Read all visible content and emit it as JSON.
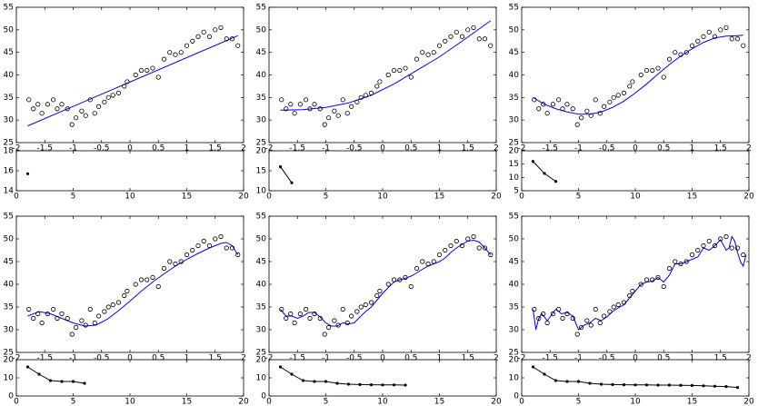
{
  "chart_data": [
    {
      "type": "scatter",
      "x": [
        -1.78,
        -1.7,
        -1.62,
        -1.55,
        -1.45,
        -1.35,
        -1.28,
        -1.2,
        -1.1,
        -1.02,
        -0.95,
        -0.85,
        -0.78,
        -0.7,
        -0.62,
        -0.55,
        -0.45,
        -0.38,
        -0.3,
        -0.2,
        -0.1,
        -0.05,
        0.1,
        0.2,
        0.3,
        0.4,
        0.5,
        0.6,
        0.7,
        0.8,
        0.9,
        1.0,
        1.1,
        1.2,
        1.3,
        1.4,
        1.5,
        1.6,
        1.7,
        1.8,
        1.9
      ],
      "y": [
        34.5,
        32.5,
        33.5,
        31.5,
        33.5,
        34.5,
        32.5,
        33.5,
        32.5,
        29,
        30.5,
        32,
        31,
        34.5,
        31.5,
        33,
        34,
        35,
        35.5,
        36,
        37.5,
        38.5,
        40,
        41,
        41,
        41.5,
        39.5,
        43.5,
        45,
        44.5,
        45,
        46.5,
        47.5,
        48.5,
        49.5,
        48.5,
        50,
        50.5,
        48,
        48,
        46.5
      ],
      "color": "#000000",
      "line_x": [
        -1.8,
        1.9
      ],
      "line_y": [
        28.7,
        48.7
      ],
      "line_color": "#0000ff",
      "xlim": [
        -2,
        2
      ],
      "ylim": [
        25,
        55
      ],
      "xticks": [
        -2,
        -1.5,
        -1,
        -0.5,
        0,
        0.5,
        1,
        1.5,
        2
      ],
      "yticks": [
        25,
        30,
        35,
        40,
        45,
        50,
        55
      ]
    },
    {
      "type": "line",
      "x": [
        1
      ],
      "values": [
        15.7
      ],
      "color": "#000000",
      "xlim": [
        0,
        20
      ],
      "ylim": [
        14,
        18
      ],
      "xticks": [
        0,
        5,
        10,
        15,
        20
      ],
      "yticks": [
        14,
        16,
        18
      ]
    },
    {
      "type": "scatter",
      "x": [
        -1.78,
        -1.7,
        -1.62,
        -1.55,
        -1.45,
        -1.35,
        -1.28,
        -1.2,
        -1.1,
        -1.02,
        -0.95,
        -0.85,
        -0.78,
        -0.7,
        -0.62,
        -0.55,
        -0.45,
        -0.38,
        -0.3,
        -0.2,
        -0.1,
        -0.05,
        0.1,
        0.2,
        0.3,
        0.4,
        0.5,
        0.6,
        0.7,
        0.8,
        0.9,
        1.0,
        1.1,
        1.2,
        1.3,
        1.4,
        1.5,
        1.6,
        1.7,
        1.8,
        1.9
      ],
      "y": [
        34.5,
        32.5,
        33.5,
        31.5,
        33.5,
        34.5,
        32.5,
        33.5,
        32.5,
        29,
        30.5,
        32,
        31,
        34.5,
        31.5,
        33,
        34,
        35,
        35.5,
        36,
        37.5,
        38.5,
        40,
        41,
        41,
        41.5,
        39.5,
        43.5,
        45,
        44.5,
        45,
        46.5,
        47.5,
        48.5,
        49.5,
        48.5,
        50,
        50.5,
        48,
        48,
        46.5
      ],
      "color": "#000000",
      "line_x": [
        -1.8,
        -1.4,
        -1,
        -0.6,
        -0.2,
        0.2,
        0.6,
        1,
        1.4,
        1.9
      ],
      "line_y": [
        32.2,
        32.3,
        32.8,
        33.8,
        35.5,
        38,
        41,
        44,
        47.5,
        52
      ],
      "line_color": "#0000ff",
      "xlim": [
        -2,
        2
      ],
      "ylim": [
        25,
        55
      ],
      "xticks": [
        -2,
        -1.5,
        -1,
        -0.5,
        0,
        0.5,
        1,
        1.5,
        2
      ],
      "yticks": [
        25,
        30,
        35,
        40,
        45,
        50,
        55
      ]
    },
    {
      "type": "line",
      "x": [
        1,
        2
      ],
      "values": [
        16,
        12
      ],
      "color": "#000000",
      "xlim": [
        0,
        20
      ],
      "ylim": [
        10,
        20
      ],
      "xticks": [
        0,
        5,
        10,
        15,
        20
      ],
      "yticks": [
        10,
        15,
        20
      ]
    },
    {
      "type": "scatter",
      "x": [
        -1.78,
        -1.7,
        -1.62,
        -1.55,
        -1.45,
        -1.35,
        -1.28,
        -1.2,
        -1.1,
        -1.02,
        -0.95,
        -0.85,
        -0.78,
        -0.7,
        -0.62,
        -0.55,
        -0.45,
        -0.38,
        -0.3,
        -0.2,
        -0.1,
        -0.05,
        0.1,
        0.2,
        0.3,
        0.4,
        0.5,
        0.6,
        0.7,
        0.8,
        0.9,
        1.0,
        1.1,
        1.2,
        1.3,
        1.4,
        1.5,
        1.6,
        1.7,
        1.8,
        1.9
      ],
      "y": [
        34.5,
        32.5,
        33.5,
        31.5,
        33.5,
        34.5,
        32.5,
        33.5,
        32.5,
        29,
        30.5,
        32,
        31,
        34.5,
        31.5,
        33,
        34,
        35,
        35.5,
        36,
        37.5,
        38.5,
        40,
        41,
        41,
        41.5,
        39.5,
        43.5,
        45,
        44.5,
        45,
        46.5,
        47.5,
        48.5,
        49.5,
        48.5,
        50,
        50.5,
        48,
        48,
        46.5
      ],
      "color": "#000000",
      "line_x": [
        -1.8,
        -1.6,
        -1.4,
        -1.2,
        -1,
        -0.8,
        -0.6,
        -0.4,
        -0.2,
        0,
        0.2,
        0.4,
        0.6,
        0.8,
        1,
        1.2,
        1.4,
        1.6,
        1.8,
        1.9
      ],
      "line_y": [
        35,
        33.5,
        32.5,
        31.8,
        31.3,
        31.3,
        31.8,
        32.8,
        34.2,
        36,
        38,
        40.2,
        42.3,
        44.2,
        45.8,
        47.2,
        48.2,
        48.6,
        48.7,
        48.8
      ],
      "line_color": "#0000ff",
      "xlim": [
        -2,
        2
      ],
      "ylim": [
        25,
        55
      ],
      "xticks": [
        -2,
        -1.5,
        -1,
        -0.5,
        0,
        0.5,
        1,
        1.5,
        2
      ],
      "yticks": [
        25,
        30,
        35,
        40,
        45,
        50,
        55
      ]
    },
    {
      "type": "line",
      "x": [
        1,
        2,
        3
      ],
      "values": [
        16,
        11.5,
        8.5
      ],
      "color": "#000000",
      "xlim": [
        0,
        20
      ],
      "ylim": [
        5,
        20
      ],
      "xticks": [
        0,
        5,
        10,
        15,
        20
      ],
      "yticks": [
        5,
        10,
        15,
        20
      ]
    },
    {
      "type": "scatter",
      "x": [
        -1.78,
        -1.7,
        -1.62,
        -1.55,
        -1.45,
        -1.35,
        -1.28,
        -1.2,
        -1.1,
        -1.02,
        -0.95,
        -0.85,
        -0.78,
        -0.7,
        -0.62,
        -0.55,
        -0.45,
        -0.38,
        -0.3,
        -0.2,
        -0.1,
        -0.05,
        0.1,
        0.2,
        0.3,
        0.4,
        0.5,
        0.6,
        0.7,
        0.8,
        0.9,
        1.0,
        1.1,
        1.2,
        1.3,
        1.4,
        1.5,
        1.6,
        1.7,
        1.8,
        1.9
      ],
      "y": [
        34.5,
        32.5,
        33.5,
        31.5,
        33.5,
        34.5,
        32.5,
        33.5,
        32.5,
        29,
        30.5,
        32,
        31,
        34.5,
        31.5,
        33,
        34,
        35,
        35.5,
        36,
        37.5,
        38.5,
        40,
        41,
        41,
        41.5,
        39.5,
        43.5,
        45,
        44.5,
        45,
        46.5,
        47.5,
        48.5,
        49.5,
        48.5,
        50,
        50.5,
        48,
        48,
        46.5
      ],
      "color": "#000000",
      "line_x": [
        -1.8,
        -1.6,
        -1.4,
        -1.2,
        -1,
        -0.8,
        -0.6,
        -0.4,
        -0.2,
        0,
        0.2,
        0.4,
        0.6,
        0.8,
        1,
        1.2,
        1.4,
        1.6,
        1.7,
        1.8,
        1.9
      ],
      "line_y": [
        33,
        34,
        33.5,
        32.5,
        31.5,
        30.8,
        31,
        32.3,
        34.2,
        36.3,
        38.5,
        40.5,
        42.3,
        44,
        45.5,
        46.8,
        48,
        49,
        49.2,
        48.5,
        46.5
      ],
      "line_color": "#0000ff",
      "xlim": [
        -2,
        2
      ],
      "ylim": [
        25,
        55
      ],
      "xticks": [
        -2,
        -1.5,
        -1,
        -0.5,
        0,
        0.5,
        1,
        1.5,
        2
      ],
      "yticks": [
        25,
        30,
        35,
        40,
        45,
        50,
        55
      ]
    },
    {
      "type": "line",
      "x": [
        1,
        2,
        3,
        4,
        5,
        6
      ],
      "values": [
        16,
        12,
        8.5,
        8,
        8,
        7
      ],
      "color": "#000000",
      "xlim": [
        0,
        20
      ],
      "ylim": [
        0,
        20
      ],
      "xticks": [
        0,
        5,
        10,
        15,
        20
      ],
      "yticks": [
        0,
        10,
        20
      ]
    },
    {
      "type": "scatter",
      "x": [
        -1.78,
        -1.7,
        -1.62,
        -1.55,
        -1.45,
        -1.35,
        -1.28,
        -1.2,
        -1.1,
        -1.02,
        -0.95,
        -0.85,
        -0.78,
        -0.7,
        -0.62,
        -0.55,
        -0.45,
        -0.38,
        -0.3,
        -0.2,
        -0.1,
        -0.05,
        0.1,
        0.2,
        0.3,
        0.4,
        0.5,
        0.6,
        0.7,
        0.8,
        0.9,
        1.0,
        1.1,
        1.2,
        1.3,
        1.4,
        1.5,
        1.6,
        1.7,
        1.8,
        1.9
      ],
      "y": [
        34.5,
        32.5,
        33.5,
        31.5,
        33.5,
        34.5,
        32.5,
        33.5,
        32.5,
        29,
        30.5,
        32,
        31,
        34.5,
        31.5,
        33,
        34,
        35,
        35.5,
        36,
        37.5,
        38.5,
        40,
        41,
        41,
        41.5,
        39.5,
        43.5,
        45,
        44.5,
        45,
        46.5,
        47.5,
        48.5,
        49.5,
        48.5,
        50,
        50.5,
        48,
        48,
        46.5
      ],
      "color": "#000000",
      "line_x": [
        -1.8,
        -1.7,
        -1.6,
        -1.5,
        -1.4,
        -1.3,
        -1.2,
        -1.1,
        -1,
        -0.9,
        -0.8,
        -0.7,
        -0.6,
        -0.5,
        -0.4,
        -0.3,
        -0.2,
        -0.1,
        0,
        0.1,
        0.2,
        0.3,
        0.4,
        0.5,
        0.6,
        0.7,
        0.8,
        0.9,
        1,
        1.1,
        1.2,
        1.3,
        1.4,
        1.5,
        1.6,
        1.7,
        1.8,
        1.9
      ],
      "line_y": [
        34.5,
        33,
        33,
        32.5,
        33,
        33.8,
        33.8,
        32.8,
        31.5,
        30.8,
        30.8,
        31.5,
        31.3,
        31.5,
        32.8,
        34,
        35,
        36.5,
        38,
        39.3,
        40.5,
        41,
        41.3,
        41.8,
        42.5,
        43.3,
        44,
        44.5,
        45,
        45.8,
        47,
        48,
        48.8,
        49.5,
        49.7,
        49.3,
        48,
        46.5
      ],
      "line_color": "#0000ff",
      "xlim": [
        -2,
        2
      ],
      "ylim": [
        25,
        55
      ],
      "xticks": [
        -2,
        -1.5,
        -1,
        -0.5,
        0,
        0.5,
        1,
        1.5,
        2
      ],
      "yticks": [
        25,
        30,
        35,
        40,
        45,
        50,
        55
      ]
    },
    {
      "type": "line",
      "x": [
        1,
        2,
        3,
        4,
        5,
        6,
        7,
        8,
        9,
        10,
        11,
        12
      ],
      "values": [
        16,
        12,
        8.5,
        8,
        8,
        7,
        6.5,
        6.3,
        6.2,
        6.1,
        6.1,
        6
      ],
      "color": "#000000",
      "xlim": [
        0,
        20
      ],
      "ylim": [
        0,
        20
      ],
      "xticks": [
        0,
        5,
        10,
        15,
        20
      ],
      "yticks": [
        0,
        10,
        20
      ]
    },
    {
      "type": "scatter",
      "x": [
        -1.78,
        -1.7,
        -1.62,
        -1.55,
        -1.45,
        -1.35,
        -1.28,
        -1.2,
        -1.1,
        -1.02,
        -0.95,
        -0.85,
        -0.78,
        -0.7,
        -0.62,
        -0.55,
        -0.45,
        -0.38,
        -0.3,
        -0.2,
        -0.1,
        -0.05,
        0.1,
        0.2,
        0.3,
        0.4,
        0.5,
        0.6,
        0.7,
        0.8,
        0.9,
        1.0,
        1.1,
        1.2,
        1.3,
        1.4,
        1.5,
        1.6,
        1.7,
        1.8,
        1.9
      ],
      "y": [
        34.5,
        32.5,
        33.5,
        31.5,
        33.5,
        34.5,
        32.5,
        33.5,
        32.5,
        29,
        30.5,
        32,
        31,
        34.5,
        31.5,
        33,
        34,
        35,
        35.5,
        36,
        37.5,
        38.5,
        40,
        41,
        41,
        41.5,
        39.5,
        43.5,
        45,
        44.5,
        45,
        46.5,
        47.5,
        48.5,
        49.5,
        48.5,
        50,
        50.5,
        48,
        48,
        46.5
      ],
      "color": "#000000",
      "line_x": [
        -1.8,
        -1.75,
        -1.7,
        -1.65,
        -1.6,
        -1.55,
        -1.5,
        -1.4,
        -1.3,
        -1.2,
        -1.1,
        -1,
        -0.9,
        -0.8,
        -0.7,
        -0.6,
        -0.5,
        -0.4,
        -0.3,
        -0.2,
        -0.1,
        0,
        0.1,
        0.2,
        0.3,
        0.4,
        0.5,
        0.6,
        0.7,
        0.8,
        0.9,
        1,
        1.1,
        1.2,
        1.3,
        1.4,
        1.5,
        1.6,
        1.65,
        1.7,
        1.75,
        1.8,
        1.85,
        1.9,
        1.95
      ],
      "line_y": [
        34.5,
        30,
        32.5,
        33.5,
        32.8,
        32,
        32.8,
        34.5,
        33.5,
        33.8,
        33,
        30,
        31,
        31.5,
        32.5,
        32,
        32.8,
        34,
        34.8,
        35.5,
        37,
        38.5,
        40,
        40.5,
        40.7,
        41.5,
        40.5,
        42,
        44.5,
        44.5,
        45,
        45.5,
        46,
        48,
        47.5,
        48.5,
        49.8,
        47.5,
        48,
        50.5,
        49.5,
        47,
        45,
        44,
        46.5
      ],
      "line_color": "#0000ff",
      "xlim": [
        -2,
        2
      ],
      "ylim": [
        25,
        55
      ],
      "xticks": [
        -2,
        -1.5,
        -1,
        -0.5,
        0,
        0.5,
        1,
        1.5,
        2
      ],
      "yticks": [
        25,
        30,
        35,
        40,
        45,
        50,
        55
      ]
    },
    {
      "type": "line",
      "x": [
        1,
        2,
        3,
        4,
        5,
        6,
        7,
        8,
        9,
        10,
        11,
        12,
        13,
        14,
        15,
        16,
        17,
        18,
        19
      ],
      "values": [
        16,
        12,
        8.5,
        8,
        8,
        7,
        6.5,
        6.3,
        6.2,
        6.1,
        6.1,
        6,
        6,
        5.9,
        5.8,
        5.6,
        5.4,
        5.2,
        4.7
      ],
      "color": "#000000",
      "xlim": [
        0,
        20
      ],
      "ylim": [
        0,
        20
      ],
      "xticks": [
        0,
        5,
        10,
        15,
        20
      ],
      "yticks": [
        0,
        10,
        20
      ]
    }
  ]
}
